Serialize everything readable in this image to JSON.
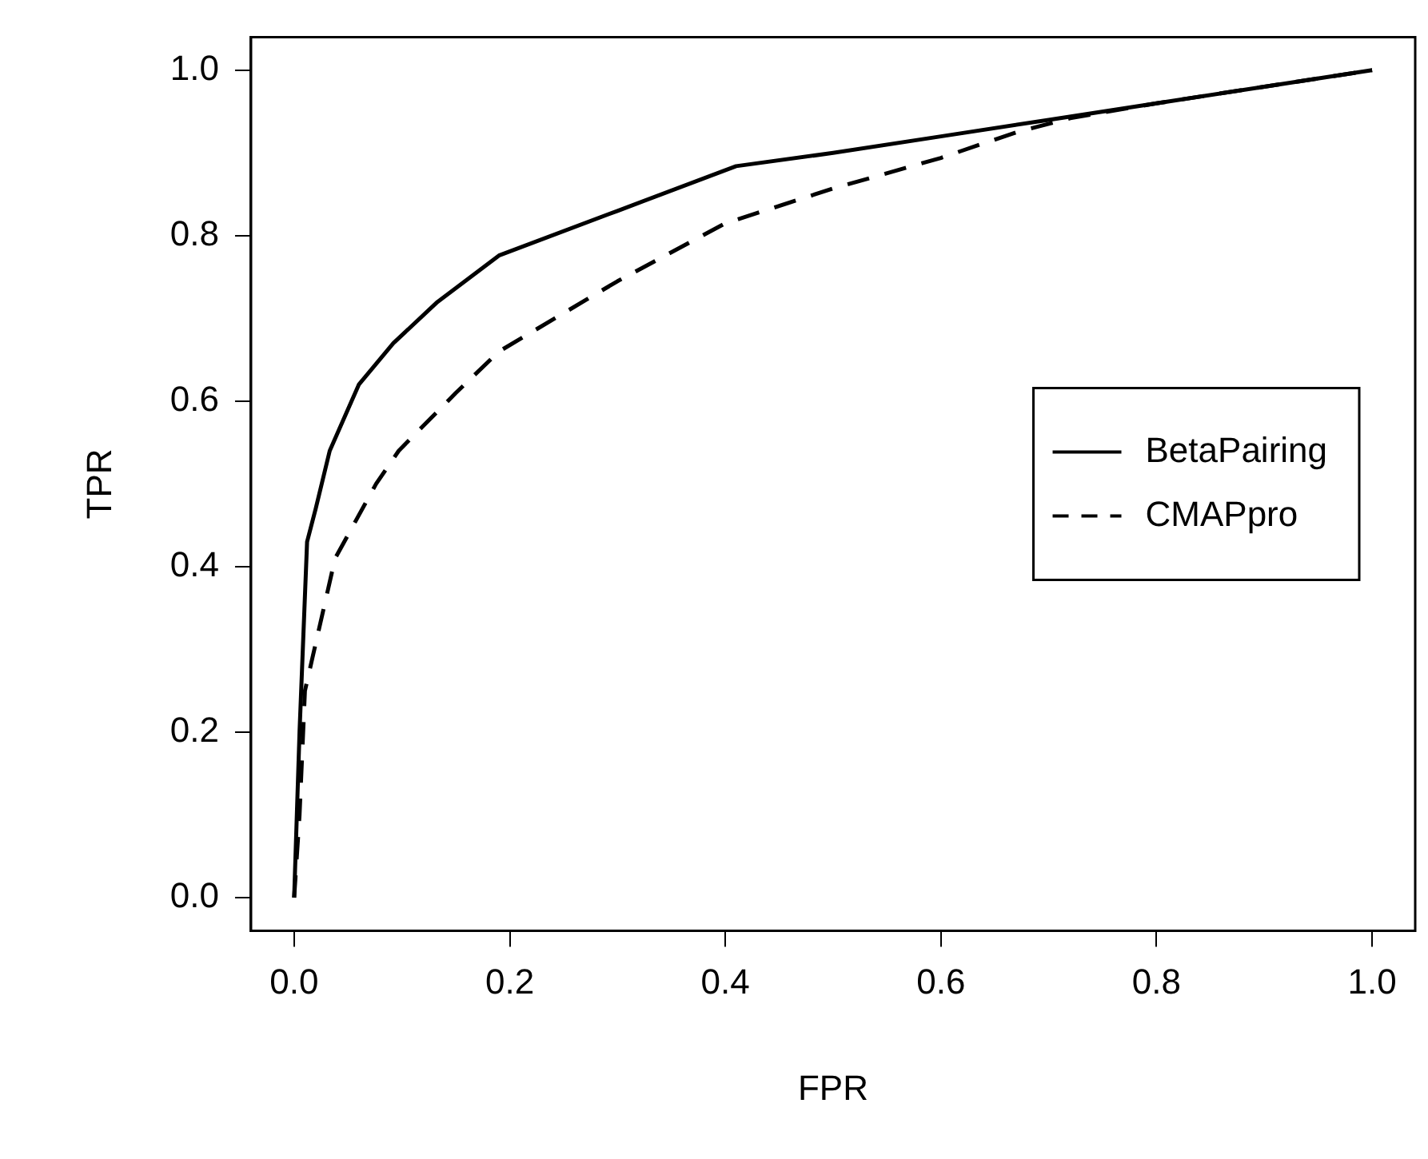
{
  "chart_data": {
    "type": "line",
    "xlabel": "FPR",
    "ylabel": "TPR",
    "xlim": [
      -0.04,
      1.04
    ],
    "ylim": [
      -0.04,
      1.04
    ],
    "xticks": [
      {
        "value": 0,
        "label": "0.0"
      },
      {
        "value": 0.2,
        "label": "0.2"
      },
      {
        "value": 0.4,
        "label": "0.4"
      },
      {
        "value": 0.6,
        "label": "0.6"
      },
      {
        "value": 0.8,
        "label": "0.8"
      },
      {
        "value": 1,
        "label": "1.0"
      }
    ],
    "yticks": [
      {
        "value": 0,
        "label": "0.0"
      },
      0.2,
      0.4,
      0.6,
      0.8,
      {
        "value": 1,
        "label": "1.0"
      }
    ],
    "legend": "right",
    "marker": "none",
    "grid": false,
    "series": [
      {
        "name": "BetaPairing",
        "color": "#000000",
        "line_style": "solid",
        "x": [
          0,
          0.005,
          0.012,
          0.02,
          0.033,
          0.06,
          0.092,
          0.133,
          0.19,
          0.3,
          0.41,
          0.5,
          0.6,
          0.7,
          0.8,
          0.9,
          1
        ],
        "values": [
          0,
          0.2,
          0.43,
          0.47,
          0.54,
          0.62,
          0.67,
          0.72,
          0.776,
          0.83,
          0.884,
          0.9,
          0.92,
          0.94,
          0.96,
          0.98,
          1
        ]
      },
      {
        "name": "CMAPpro",
        "color": "#000000",
        "line_style": "dashed",
        "x": [
          0,
          0.005,
          0.01,
          0.017,
          0.038,
          0.076,
          0.097,
          0.15,
          0.19,
          0.3,
          0.4,
          0.5,
          0.6,
          0.67,
          0.72,
          0.8,
          0.9,
          1
        ],
        "values": [
          0,
          0.1,
          0.25,
          0.29,
          0.41,
          0.5,
          0.54,
          0.61,
          0.66,
          0.745,
          0.815,
          0.857,
          0.894,
          0.925,
          0.942,
          0.96,
          0.98,
          1
        ]
      }
    ]
  }
}
